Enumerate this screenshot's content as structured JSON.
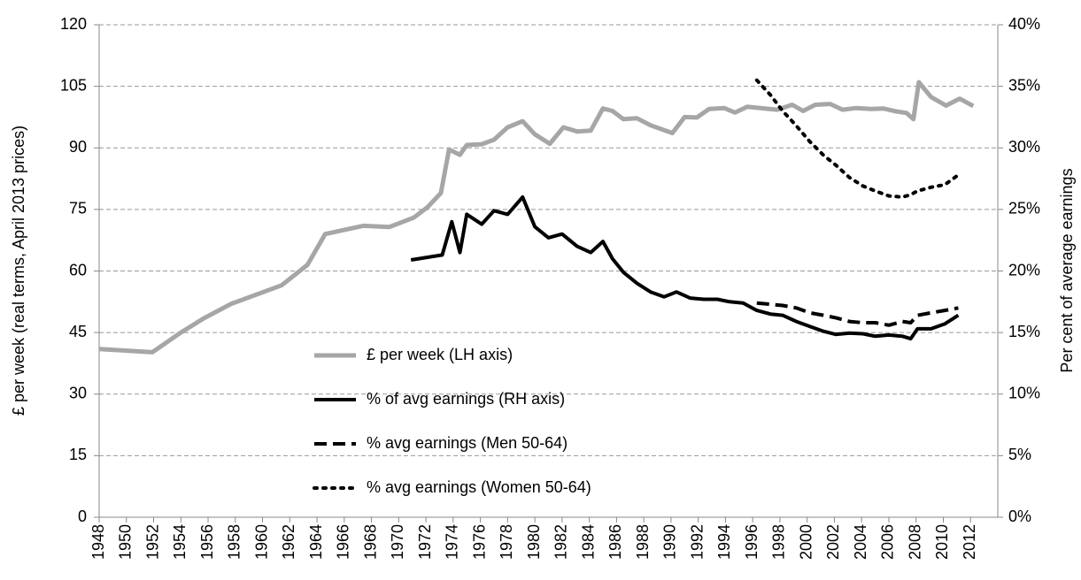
{
  "chart_data": {
    "type": "line",
    "y_label": "£ per week (real terms, April 2013 prices)",
    "y2_label": "Per cent of average earnings",
    "xlim": [
      1948,
      2014
    ],
    "xticks": [
      1948,
      1950,
      1952,
      1954,
      1956,
      1958,
      1960,
      1962,
      1964,
      1966,
      1968,
      1970,
      1972,
      1974,
      1976,
      1978,
      1980,
      1982,
      1984,
      1986,
      1988,
      1990,
      1992,
      1994,
      1996,
      1998,
      2000,
      2002,
      2004,
      2006,
      2008,
      2010,
      2012
    ],
    "ylim": [
      0,
      120
    ],
    "yticks": [
      0,
      15,
      30,
      45,
      60,
      75,
      90,
      105,
      120
    ],
    "y2lim": [
      0,
      40
    ],
    "y2ticks": [
      {
        "value": 0,
        "label": "0%"
      },
      {
        "value": 5,
        "label": "5%"
      },
      {
        "value": 10,
        "label": "10%"
      },
      {
        "value": 15,
        "label": "15%"
      },
      {
        "value": 20,
        "label": "20%"
      },
      {
        "value": 25,
        "label": "25%"
      },
      {
        "value": 30,
        "label": "30%"
      },
      {
        "value": 35,
        "label": "35%"
      },
      {
        "value": 40,
        "label": "40%"
      }
    ],
    "grid": true,
    "series": [
      {
        "name": "£ per week (LH axis)",
        "color": "#a6a6a6",
        "style": "solid",
        "x": [
          1948,
          1951.9,
          1954,
          1955.7,
          1957.7,
          1961.4,
          1963.3,
          1964.6,
          1967.4,
          1969.3,
          1971.1,
          1972.1,
          1973.1,
          1973.7,
          1974.5,
          1975,
          1976.1,
          1977,
          1978,
          1979.1,
          1980,
          1981.1,
          1982.1,
          1983.1,
          1984.1,
          1985,
          1985.7,
          1986.5,
          1987.5,
          1988.5,
          1990.1,
          1991,
          1991.9,
          1992.8,
          1993.9,
          1994.7,
          1995.6,
          1997.8,
          1998.9,
          1999.7,
          2000.6,
          2001.7,
          2002.6,
          2003.6,
          2004.7,
          2005.6,
          2006.5,
          2007.3,
          2007.8,
          2008.2,
          2009.1,
          2010.2,
          2011.2,
          2012.2
        ],
        "values": [
          41,
          40.2,
          45,
          48.5,
          52,
          56.5,
          61.5,
          69,
          71,
          70.7,
          73,
          75.5,
          79,
          89.6,
          88.3,
          90.7,
          90.9,
          92,
          95,
          96.5,
          93.3,
          91,
          95,
          94,
          94.2,
          99.6,
          99,
          97,
          97.2,
          95.5,
          93.6,
          97.5,
          97.4,
          99.5,
          99.7,
          98.6,
          100,
          99.3,
          100.5,
          99,
          100.5,
          100.7,
          99.3,
          99.7,
          99.5,
          99.6,
          98.9,
          98.5,
          97,
          106,
          102.4,
          100.3,
          102,
          100.2
        ]
      },
      {
        "name": "% of avg earnings (RH axis)",
        "color": "#000000",
        "style": "solid",
        "axis": "y2",
        "x": [
          1970.9,
          1973.2,
          1973.9,
          1974.5,
          1975,
          1976.1,
          1977,
          1978,
          1979.1,
          1980,
          1981,
          1982,
          1983.1,
          1984.1,
          1985,
          1985.7,
          1986.5,
          1987.5,
          1988.5,
          1989.5,
          1990.4,
          1991.4,
          1992.4,
          1993.4,
          1994.3,
          1995.3,
          1996.3,
          1997.3,
          1998.2,
          1999.2,
          2000.2,
          2001.2,
          2002.1,
          2003.1,
          2004.1,
          2005,
          2006,
          2007,
          2007.6,
          2008.1,
          2009.1,
          2010.1,
          2011.1
        ],
        "values": [
          20.9,
          21.3,
          24,
          21.5,
          24.6,
          23.8,
          24.9,
          24.6,
          26,
          23.6,
          22.7,
          23,
          22,
          21.5,
          22.4,
          21,
          19.9,
          19,
          18.3,
          17.9,
          18.3,
          17.8,
          17.7,
          17.7,
          17.5,
          17.4,
          16.8,
          16.5,
          16.4,
          15.9,
          15.5,
          15.1,
          14.85,
          14.95,
          14.9,
          14.7,
          14.8,
          14.7,
          14.5,
          15.3,
          15.3,
          15.7,
          16.4
        ]
      },
      {
        "name": "% avg earnings (Men 50-64)",
        "color": "#000000",
        "style": "dashed",
        "axis": "y2",
        "x": [
          1996.3,
          1998.2,
          1999.2,
          2000.2,
          2001.2,
          2002.1,
          2003.1,
          2004.1,
          2005,
          2006,
          2007,
          2007.6,
          2008.1,
          2009.1,
          2010.1,
          2011.1
        ],
        "values": [
          17.4,
          17.2,
          17,
          16.6,
          16.4,
          16.2,
          15.9,
          15.8,
          15.8,
          15.6,
          15.9,
          15.8,
          16.4,
          16.6,
          16.8,
          17
        ]
      },
      {
        "name": "% avg earnings (Women 50-64)",
        "color": "#000000",
        "style": "dotted",
        "axis": "y2",
        "x": [
          1996.3,
          1997.3,
          1998.2,
          1999.2,
          2000.2,
          2001.2,
          2002.1,
          2003.1,
          2004.1,
          2005,
          2006,
          2007,
          2007.6,
          2008.1,
          2009.1,
          2010.1,
          2011.1
        ],
        "values": [
          35.5,
          34.3,
          33,
          31.8,
          30.5,
          29.4,
          28.6,
          27.6,
          26.9,
          26.5,
          26.1,
          26,
          26.2,
          26.5,
          26.8,
          27,
          27.8
        ]
      }
    ]
  }
}
